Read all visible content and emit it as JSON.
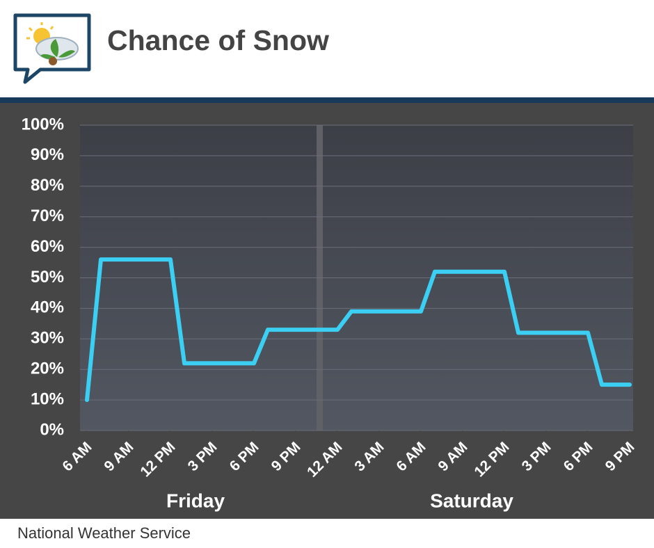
{
  "chart_data": {
    "type": "line",
    "title": "Chance of Snow",
    "source": "National Weather Service",
    "day_labels": [
      "Friday",
      "Saturday"
    ],
    "x": [
      0,
      1,
      6,
      7,
      12,
      13,
      18,
      19,
      24,
      25,
      30,
      31,
      36,
      37,
      39
    ],
    "values": [
      10,
      56,
      56,
      22,
      22,
      33,
      33,
      39,
      39,
      52,
      52,
      32,
      32,
      15,
      15
    ],
    "color": "#3ccff4",
    "xlim": [
      -0.5,
      39.25
    ],
    "xticks": [
      {
        "value": 0,
        "label": "6 AM"
      },
      {
        "value": 3,
        "label": "9 AM"
      },
      {
        "value": 6,
        "label": "12 PM"
      },
      {
        "value": 9,
        "label": "3 PM"
      },
      {
        "value": 12,
        "label": "6 PM"
      },
      {
        "value": 15,
        "label": "9 PM"
      },
      {
        "value": 18,
        "label": "12 AM"
      },
      {
        "value": 21,
        "label": "3 AM"
      },
      {
        "value": 24,
        "label": "6 AM"
      },
      {
        "value": 27,
        "label": "9 AM"
      },
      {
        "value": 30,
        "label": "12 PM"
      },
      {
        "value": 33,
        "label": "3 PM"
      },
      {
        "value": 36,
        "label": "6 PM"
      },
      {
        "value": 39,
        "label": "9 PM"
      }
    ],
    "ylim": [
      0,
      100
    ],
    "yticks": [
      {
        "value": 0,
        "label": "0%"
      },
      {
        "value": 10,
        "label": "10%"
      },
      {
        "value": 20,
        "label": "20%"
      },
      {
        "value": 30,
        "label": "30%"
      },
      {
        "value": 40,
        "label": "40%"
      },
      {
        "value": 50,
        "label": "50%"
      },
      {
        "value": 60,
        "label": "60%"
      },
      {
        "value": 70,
        "label": "70%"
      },
      {
        "value": 80,
        "label": "80%"
      },
      {
        "value": 90,
        "label": "90%"
      },
      {
        "value": 100,
        "label": "100%"
      }
    ],
    "grid": true
  }
}
